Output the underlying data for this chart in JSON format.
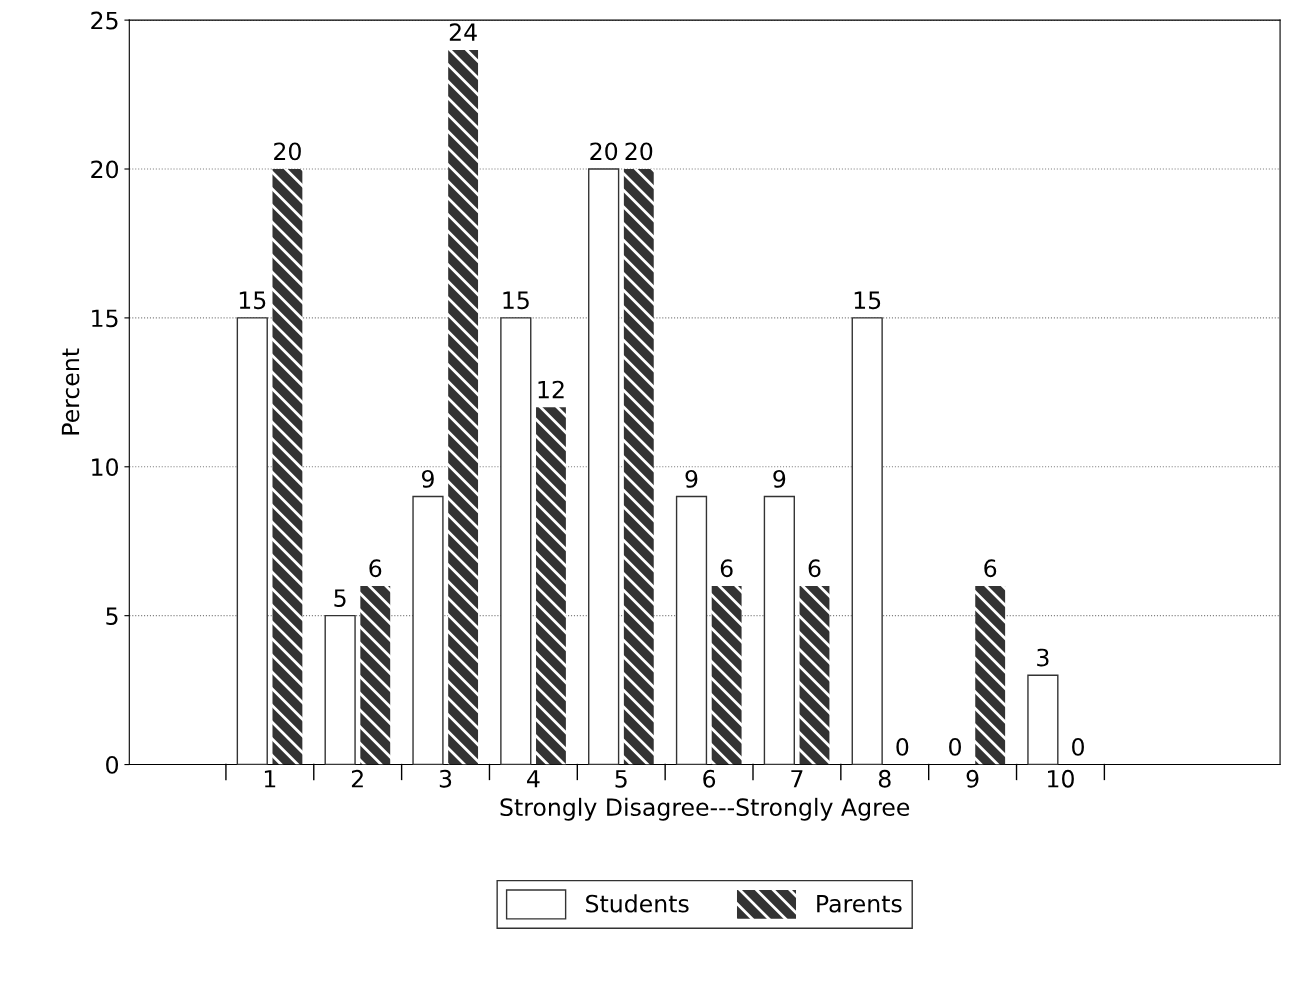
{
  "chart_data": {
    "type": "bar",
    "xlabel": "Strongly Disagree---Strongly Agree",
    "ylabel": "Percent",
    "categories": [
      "1",
      "2",
      "3",
      "4",
      "5",
      "6",
      "7",
      "8",
      "9",
      "10"
    ],
    "series": [
      {
        "name": "Students",
        "color": "#ffffff",
        "values": [
          15,
          5,
          9,
          15,
          20,
          9,
          9,
          15,
          0,
          3
        ]
      },
      {
        "name": "Parents",
        "color": "#333333",
        "values": [
          20,
          6,
          24,
          12,
          20,
          6,
          6,
          0,
          6,
          0
        ]
      }
    ],
    "ylim": [
      0,
      25
    ],
    "yticks": [
      0,
      5,
      10,
      15,
      20,
      25
    ],
    "grid": "y",
    "legend": "bottom",
    "data_labels": true
  }
}
